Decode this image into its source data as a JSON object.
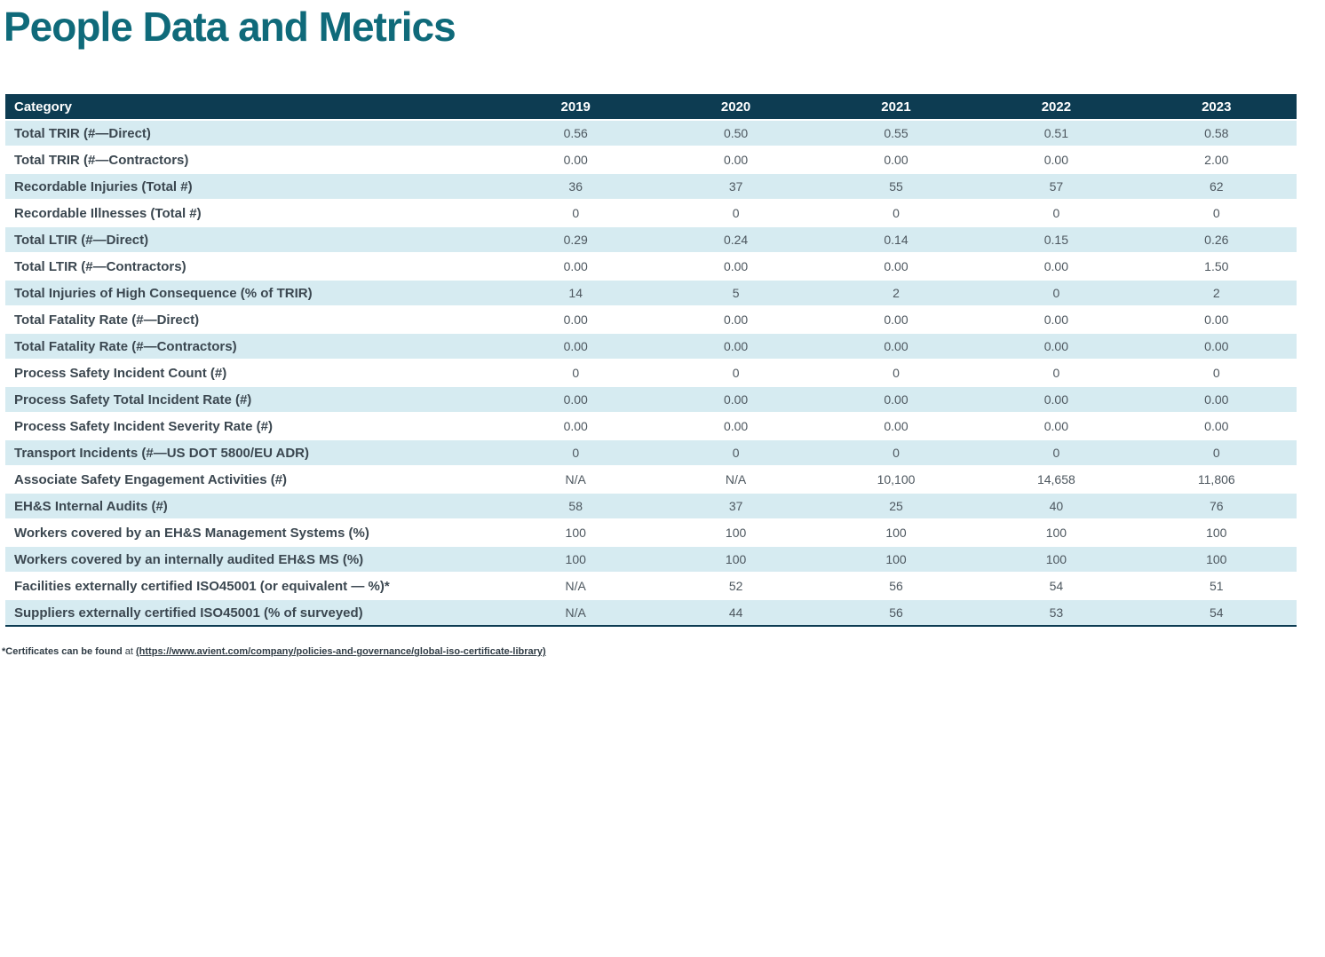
{
  "page_title": "People Data and Metrics",
  "table": {
    "columns": [
      "Category",
      "2019",
      "2020",
      "2021",
      "2022",
      "2023"
    ],
    "rows": [
      {
        "category": "Total TRIR (#—Direct)",
        "values": [
          "0.56",
          "0.50",
          "0.55",
          "0.51",
          "0.58"
        ]
      },
      {
        "category": "Total TRIR (#—Contractors)",
        "values": [
          "0.00",
          "0.00",
          "0.00",
          "0.00",
          "2.00"
        ]
      },
      {
        "category": "Recordable Injuries (Total #)",
        "values": [
          "36",
          "37",
          "55",
          "57",
          "62"
        ]
      },
      {
        "category": "Recordable Illnesses (Total #)",
        "values": [
          "0",
          "0",
          "0",
          "0",
          "0"
        ]
      },
      {
        "category": "Total LTIR (#—Direct)",
        "values": [
          "0.29",
          "0.24",
          "0.14",
          "0.15",
          "0.26"
        ]
      },
      {
        "category": "Total LTIR (#—Contractors)",
        "values": [
          "0.00",
          "0.00",
          "0.00",
          "0.00",
          "1.50"
        ]
      },
      {
        "category": "Total Injuries of High Consequence (% of TRIR)",
        "values": [
          "14",
          "5",
          "2",
          "0",
          "2"
        ]
      },
      {
        "category": "Total Fatality Rate (#—Direct)",
        "values": [
          "0.00",
          "0.00",
          "0.00",
          "0.00",
          "0.00"
        ]
      },
      {
        "category": "Total Fatality Rate (#—Contractors)",
        "values": [
          "0.00",
          "0.00",
          "0.00",
          "0.00",
          "0.00"
        ]
      },
      {
        "category": "Process Safety Incident Count (#)",
        "values": [
          "0",
          "0",
          "0",
          "0",
          "0"
        ]
      },
      {
        "category": "Process Safety Total Incident Rate (#)",
        "values": [
          "0.00",
          "0.00",
          "0.00",
          "0.00",
          "0.00"
        ]
      },
      {
        "category": "Process Safety Incident Severity Rate (#)",
        "values": [
          "0.00",
          "0.00",
          "0.00",
          "0.00",
          "0.00"
        ]
      },
      {
        "category": "Transport Incidents (#—US DOT 5800/EU ADR)",
        "values": [
          "0",
          "0",
          "0",
          "0",
          "0"
        ]
      },
      {
        "category": "Associate Safety Engagement Activities (#)",
        "values": [
          "N/A",
          "N/A",
          "10,100",
          "14,658",
          "11,806"
        ]
      },
      {
        "category": "EH&S Internal Audits (#)",
        "values": [
          "58",
          "37",
          "25",
          "40",
          "76"
        ]
      },
      {
        "category": "Workers covered by an EH&S Management Systems (%)",
        "values": [
          "100",
          "100",
          "100",
          "100",
          "100"
        ]
      },
      {
        "category": "Workers covered by an internally audited EH&S MS (%)",
        "values": [
          "100",
          "100",
          "100",
          "100",
          "100"
        ]
      },
      {
        "category": "Facilities externally certified ISO45001 (or equivalent — %)*",
        "values": [
          "N/A",
          "52",
          "56",
          "54",
          "51"
        ]
      },
      {
        "category": "Suppliers externally certified ISO45001 (% of surveyed)",
        "values": [
          "N/A",
          "44",
          "56",
          "53",
          "54"
        ]
      }
    ]
  },
  "footnote": {
    "bold_text": "*Certificates can be found",
    "connector": "at",
    "link_text": "(https://www.avient.com/company/policies-and-governance/global-iso-certificate-library)"
  },
  "colors": {
    "title": "#0f6a7a",
    "header_bg": "#0d3c52",
    "header_text": "#ffffff",
    "row_alt_bg": "#d6ebf1",
    "category_text": "#3b4750",
    "value_text": "#4d575f",
    "footnote_text": "#2f3b44"
  }
}
